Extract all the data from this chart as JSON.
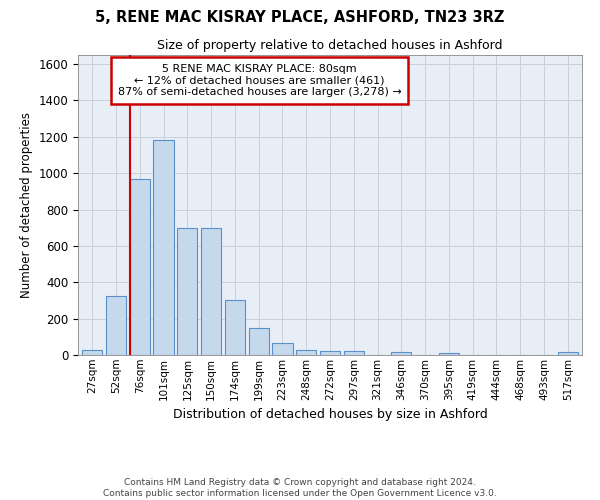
{
  "title1": "5, RENE MAC KISRAY PLACE, ASHFORD, TN23 3RZ",
  "title2": "Size of property relative to detached houses in Ashford",
  "xlabel": "Distribution of detached houses by size in Ashford",
  "ylabel": "Number of detached properties",
  "footer1": "Contains HM Land Registry data © Crown copyright and database right 2024.",
  "footer2": "Contains public sector information licensed under the Open Government Licence v3.0.",
  "annotation_line1": "5 RENE MAC KISRAY PLACE: 80sqm",
  "annotation_line2": "← 12% of detached houses are smaller (461)",
  "annotation_line3": "87% of semi-detached houses are larger (3,278) →",
  "bar_labels": [
    "27sqm",
    "52sqm",
    "76sqm",
    "101sqm",
    "125sqm",
    "150sqm",
    "174sqm",
    "199sqm",
    "223sqm",
    "248sqm",
    "272sqm",
    "297sqm",
    "321sqm",
    "346sqm",
    "370sqm",
    "395sqm",
    "419sqm",
    "444sqm",
    "468sqm",
    "493sqm",
    "517sqm"
  ],
  "bar_values": [
    30,
    325,
    970,
    1185,
    700,
    700,
    300,
    150,
    65,
    30,
    20,
    20,
    0,
    15,
    0,
    12,
    0,
    0,
    0,
    0,
    15
  ],
  "bar_color": "#c5d9ed",
  "bar_edge_color": "#5b8fc9",
  "vline_x_index": 2,
  "vline_color": "#cc0000",
  "annotation_box_color": "#cc0000",
  "ylim": [
    0,
    1650
  ],
  "yticks": [
    0,
    200,
    400,
    600,
    800,
    1000,
    1200,
    1400,
    1600
  ],
  "grid_color": "#c8d0dc",
  "fig_bg_color": "#ffffff",
  "plot_bg_color": "#e8eef5"
}
